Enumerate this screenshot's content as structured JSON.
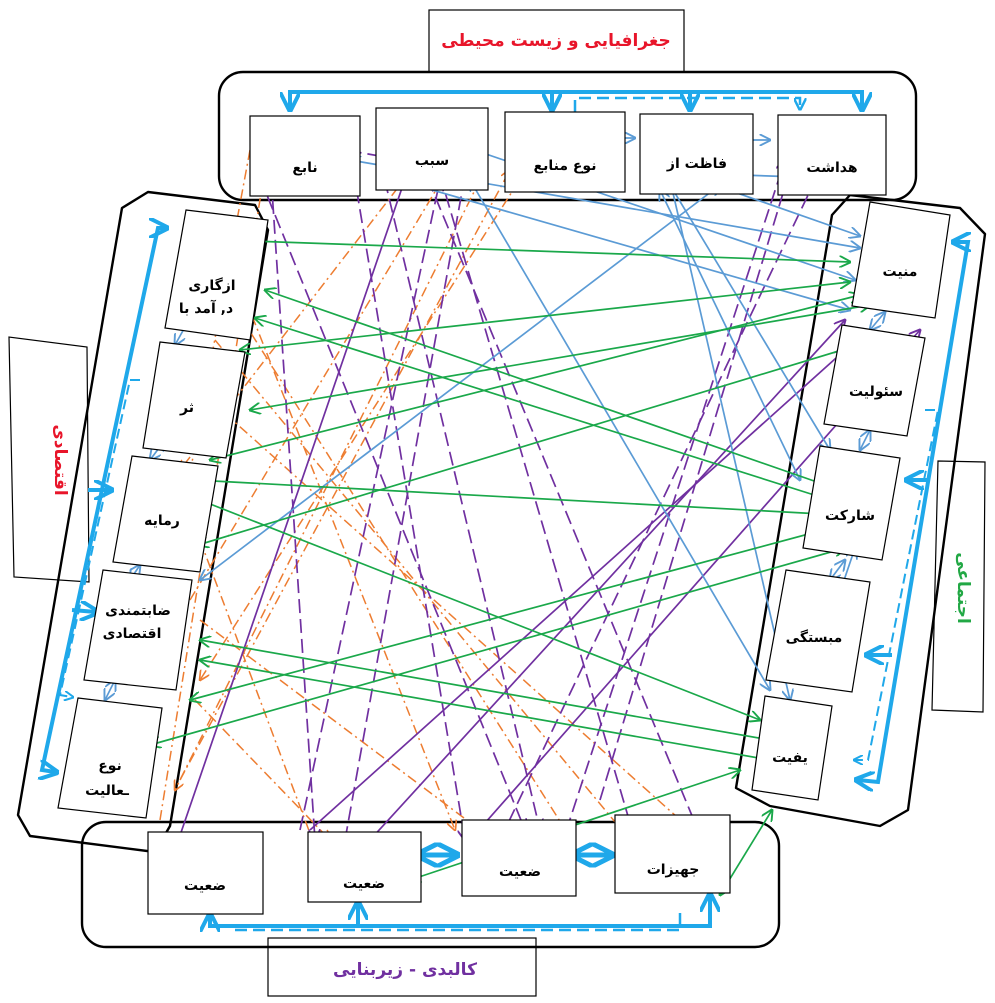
{
  "colors": {
    "red": "#e8152a",
    "purple": "#7030a0",
    "green": "#22a845",
    "blue_thick": "#1fa8ea",
    "blue_link": "#5b9bd5",
    "orange": "#ed7d31",
    "purple_link": "#7030a0",
    "green_link": "#1aa84a"
  },
  "groups": {
    "environment": {
      "title": "جغرافیایی و زیست محیطی"
    },
    "economic": {
      "title": "اقتصادی"
    },
    "social": {
      "title": "اجتماعی"
    },
    "physical": {
      "title": "کالبدی - زیربنایی"
    }
  },
  "nodes": {
    "env": [
      "نابع",
      "سبب",
      "نوع منابع",
      "فاظت از",
      "هداشت"
    ],
    "econ": [
      "ازگاری",
      "د, آمد با",
      "ثر",
      "رمایه",
      "ضابتمندی",
      "اقتصادی",
      "نوع",
      "ـعالیت"
    ],
    "soc": [
      "منیت",
      "سئولیت",
      "شارکت",
      "مبستگی",
      "یفیت"
    ],
    "phys": [
      "ضعیت",
      "ضعیت",
      "ضعیت",
      "جهیزات"
    ]
  }
}
